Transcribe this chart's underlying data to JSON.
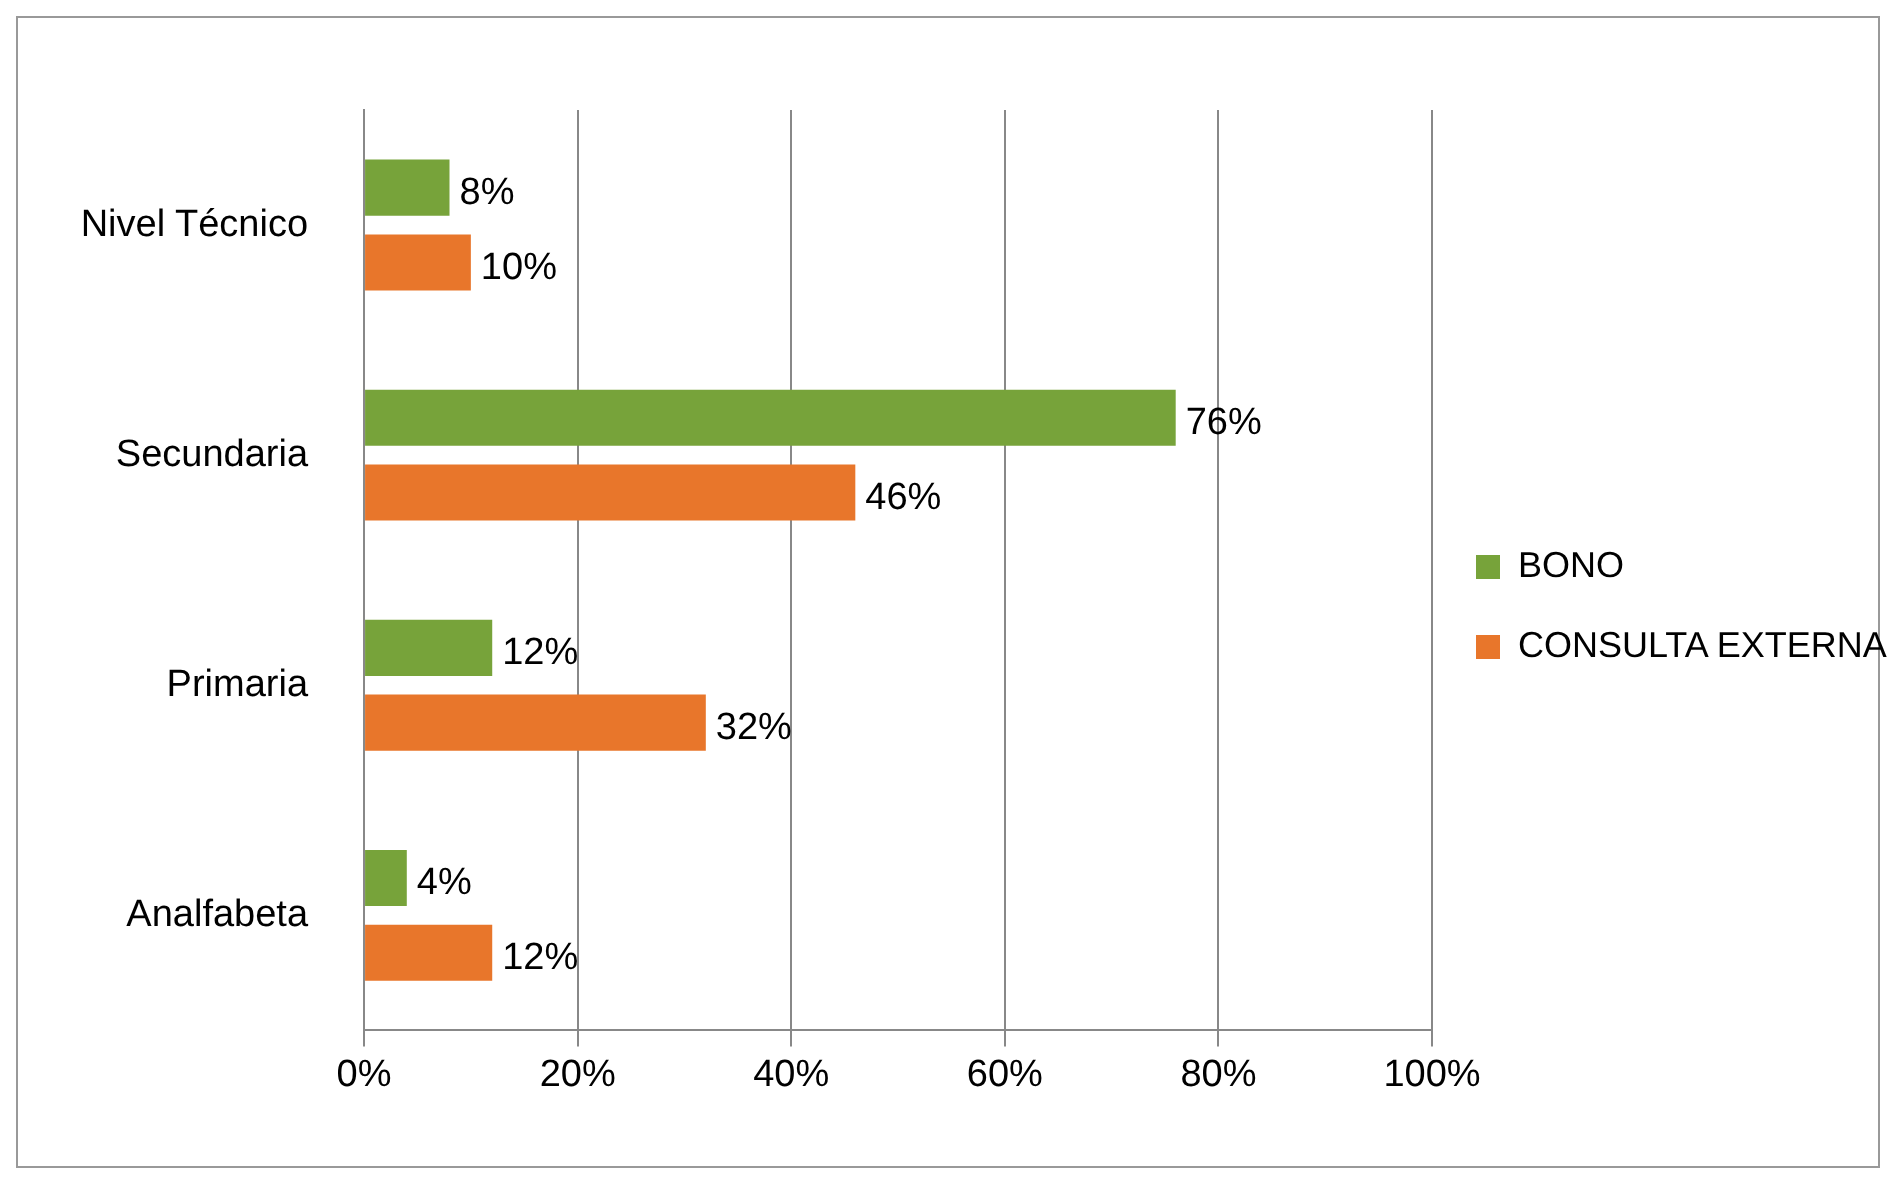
{
  "chart_data": {
    "type": "bar",
    "orientation": "horizontal",
    "categories": [
      "Nivel Técnico",
      "Secundaria",
      "Primaria",
      "Analfabeta"
    ],
    "series": [
      {
        "name": "BONO",
        "color": "#77a33a",
        "values": [
          8,
          76,
          12,
          4
        ],
        "value_labels": [
          "8%",
          "76%",
          "12%",
          "4%"
        ]
      },
      {
        "name": "CONSULTA EXTERNA",
        "color": "#e8762b",
        "values": [
          10,
          46,
          32,
          12
        ],
        "value_labels": [
          "10%",
          "46%",
          "32%",
          "12%"
        ]
      }
    ],
    "xlim": [
      0,
      100
    ],
    "xticks": [
      {
        "value": 0,
        "label": "0%"
      },
      {
        "value": 20,
        "label": "20%"
      },
      {
        "value": 40,
        "label": "40%"
      },
      {
        "value": 60,
        "label": "60%"
      },
      {
        "value": 80,
        "label": "80%"
      },
      {
        "value": 100,
        "label": "100%"
      }
    ],
    "grid": "x",
    "legend": "right"
  }
}
